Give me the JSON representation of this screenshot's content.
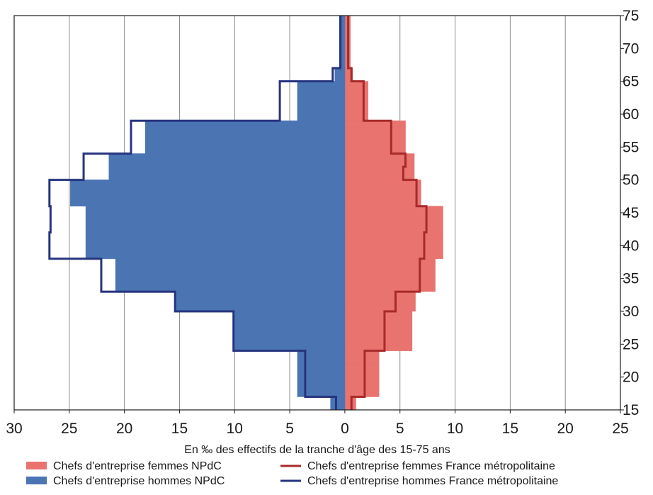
{
  "chart_data": {
    "type": "population-pyramid",
    "xlabel": "En ‰ des effectifs de la tranche d'âge des 15-75 ans",
    "x_ticks": [
      "30",
      "25",
      "20",
      "15",
      "10",
      "5",
      "0",
      "5",
      "10",
      "15",
      "20",
      "25"
    ],
    "y_ticks": [
      "15",
      "20",
      "25",
      "30",
      "35",
      "40",
      "45",
      "50",
      "55",
      "60",
      "65",
      "70",
      "75"
    ],
    "xlim": [
      -30,
      25
    ],
    "ylim": [
      15,
      75
    ],
    "age_bins": [
      [
        15,
        17
      ],
      [
        17,
        22
      ],
      [
        22,
        24
      ],
      [
        24,
        28
      ],
      [
        28,
        30
      ],
      [
        30,
        33
      ],
      [
        33,
        38
      ],
      [
        38,
        42
      ],
      [
        42,
        46
      ],
      [
        46,
        50
      ],
      [
        50,
        52
      ],
      [
        52,
        54
      ],
      [
        54,
        58
      ],
      [
        58,
        59
      ],
      [
        59,
        63
      ],
      [
        63,
        65
      ],
      [
        65,
        67
      ],
      [
        67,
        75
      ]
    ],
    "series": [
      {
        "name": "Chefs d'entreprise femmes NPdC",
        "kind": "bar",
        "color": "#e8736f",
        "values": [
          1.0,
          3.1,
          3.1,
          6.1,
          6.1,
          6.4,
          8.2,
          8.9,
          8.9,
          6.9,
          6.3,
          6.3,
          5.5,
          5.5,
          2.1,
          2.1,
          0.7,
          0.5
        ]
      },
      {
        "name": "Chefs d'entreprise hommes NPdC",
        "kind": "bar",
        "color": "#4b74b3",
        "values": [
          -1.3,
          -4.3,
          -4.3,
          -10.1,
          -10.1,
          -15.3,
          -20.8,
          -23.5,
          -23.5,
          -24.9,
          -21.4,
          -21.4,
          -18.1,
          -18.1,
          -4.3,
          -4.3,
          -0.9,
          -0.5
        ]
      },
      {
        "name": "Chefs d'entreprise femmes France métropolitaine",
        "kind": "line",
        "color": "#a72a2a",
        "values": [
          0.6,
          1.8,
          1.8,
          3.6,
          3.6,
          4.6,
          6.8,
          7.2,
          7.4,
          6.5,
          5.3,
          5.5,
          4.2,
          4.2,
          1.7,
          1.7,
          0.6,
          0.3
        ]
      },
      {
        "name": "Chefs d'entreprise hommes France métropolitaine",
        "kind": "line",
        "color": "#26347e",
        "values": [
          -0.8,
          -3.6,
          -3.6,
          -10.1,
          -10.1,
          -15.4,
          -22.1,
          -26.8,
          -26.7,
          -26.8,
          -23.7,
          -23.7,
          -19.4,
          -19.4,
          -5.9,
          -5.9,
          -1.1,
          -0.4
        ]
      }
    ],
    "legend_position": "bottom",
    "grid": true
  },
  "colors": {
    "grid": "#8a8a8a",
    "axis": "#1a1a1a"
  }
}
